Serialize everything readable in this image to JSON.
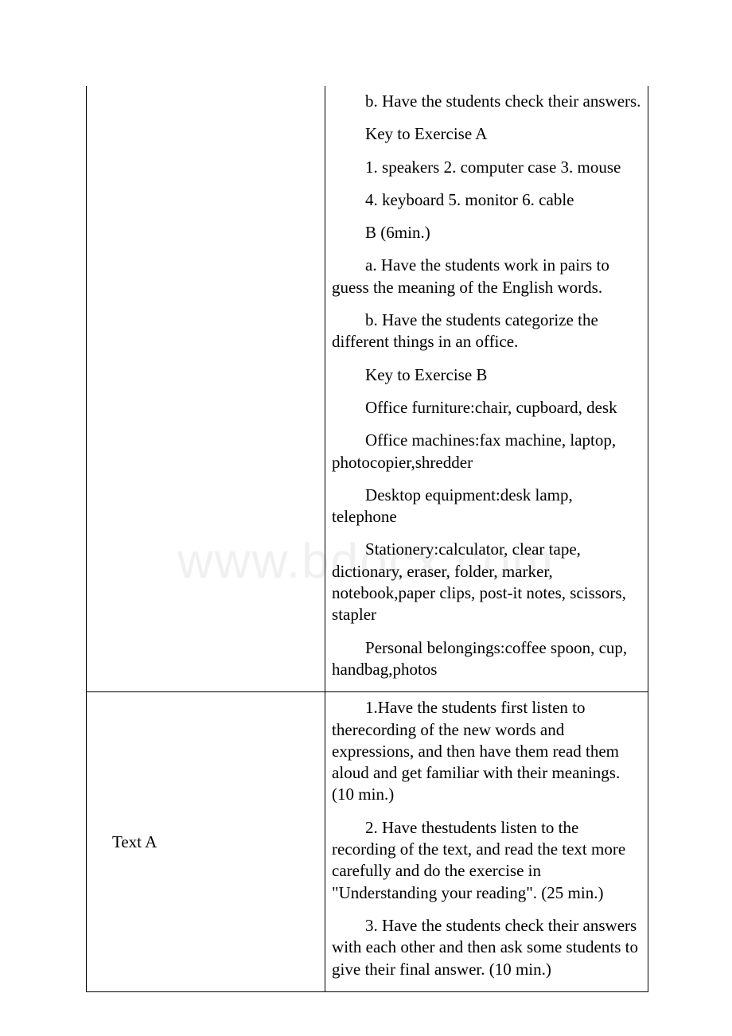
{
  "watermark": "www.bdocx.com",
  "row1": {
    "right": {
      "p1": "b. Have the students check their answers.",
      "p2": "Key to Exercise A",
      "p3": "1. speakers 2. computer case 3. mouse",
      "p4": "4. keyboard 5. monitor 6. cable",
      "p5": "B (6min.)",
      "p6": "a. Have the students work in pairs to guess the meaning of the English words.",
      "p7": " b. Have the students categorize the different things in an office.",
      "p8": "Key to Exercise B",
      "p9": "Office furniture:chair, cupboard, desk",
      "p10": "Office machines:fax machine, laptop, photocopier,shredder",
      "p11": "Desktop equipment:desk lamp, telephone",
      "p12": "Stationery:calculator, clear tape, dictionary, eraser, folder, marker, notebook,paper clips, post-it notes, scissors, stapler",
      "p13": "Personal belongings:coffee spoon, cup, handbag,photos"
    }
  },
  "row2": {
    "left": "Text A",
    "right": {
      "p1": "1.Have the students first listen to therecording of the new words and expressions, and then have them read them aloud and get familiar with their meanings. (10 min.)",
      "p2": "2. Have thestudents listen to the recording of the text, and read the text more carefully and do the exercise in \"Understanding your reading\". (25 min.)",
      "p3": "3. Have the students check their answers with each other and then ask some students to give their final answer. (10 min.)"
    }
  }
}
